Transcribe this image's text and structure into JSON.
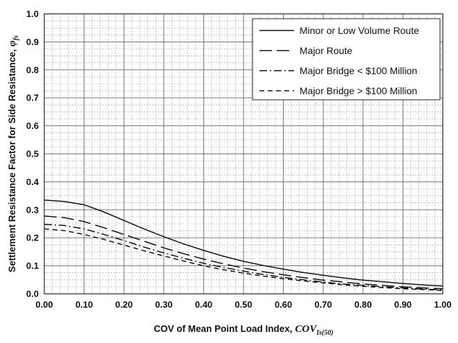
{
  "chart_data": {
    "type": "line",
    "xlabel": "COV of Mean Point Load Index,",
    "xlabel_var": "COV",
    "xlabel_sub": "Is(50)",
    "ylabel": "Settlement Resistance Factor for Side Resistance,",
    "ylabel_var": "φ",
    "ylabel_sub": "fs",
    "xlim": [
      0,
      1
    ],
    "ylim": [
      0,
      1
    ],
    "x_ticks": [
      "0.00",
      "0.10",
      "0.20",
      "0.30",
      "0.40",
      "0.50",
      "0.60",
      "0.70",
      "0.80",
      "0.90",
      "1.00"
    ],
    "y_ticks": [
      "0.0",
      "0.1",
      "0.2",
      "0.3",
      "0.4",
      "0.5",
      "0.6",
      "0.7",
      "0.8",
      "0.9",
      "1.0"
    ],
    "grid": true,
    "legend_position": "top-right",
    "series": [
      {
        "name": "Minor or Low Volume Route",
        "dash": "solid",
        "x": [
          0,
          0.05,
          0.1,
          0.15,
          0.2,
          0.25,
          0.3,
          0.35,
          0.4,
          0.45,
          0.5,
          0.55,
          0.6,
          0.65,
          0.7,
          0.75,
          0.8,
          0.85,
          0.9,
          0.95,
          1.0
        ],
        "y": [
          0.335,
          0.33,
          0.318,
          0.292,
          0.262,
          0.232,
          0.204,
          0.178,
          0.155,
          0.134,
          0.116,
          0.101,
          0.088,
          0.076,
          0.066,
          0.057,
          0.049,
          0.043,
          0.037,
          0.032,
          0.028
        ]
      },
      {
        "name": "Major Route",
        "dash": "long-dash",
        "x": [
          0,
          0.05,
          0.1,
          0.15,
          0.2,
          0.25,
          0.3,
          0.35,
          0.4,
          0.45,
          0.5,
          0.55,
          0.6,
          0.65,
          0.7,
          0.75,
          0.8,
          0.85,
          0.9,
          0.95,
          1.0
        ],
        "y": [
          0.278,
          0.272,
          0.258,
          0.236,
          0.212,
          0.188,
          0.164,
          0.143,
          0.124,
          0.107,
          0.092,
          0.079,
          0.068,
          0.058,
          0.049,
          0.042,
          0.035,
          0.03,
          0.025,
          0.021,
          0.018
        ]
      },
      {
        "name": "Major Bridge < $100 Million",
        "dash": "dash-dot",
        "x": [
          0,
          0.05,
          0.1,
          0.15,
          0.2,
          0.25,
          0.3,
          0.35,
          0.4,
          0.45,
          0.5,
          0.55,
          0.6,
          0.65,
          0.7,
          0.75,
          0.8,
          0.85,
          0.9,
          0.95,
          1.0
        ],
        "y": [
          0.248,
          0.244,
          0.232,
          0.212,
          0.19,
          0.167,
          0.146,
          0.127,
          0.109,
          0.094,
          0.081,
          0.069,
          0.059,
          0.05,
          0.042,
          0.035,
          0.03,
          0.025,
          0.021,
          0.017,
          0.014
        ]
      },
      {
        "name": "Major Bridge > $100 Million",
        "dash": "short-dash",
        "x": [
          0,
          0.05,
          0.1,
          0.15,
          0.2,
          0.25,
          0.3,
          0.35,
          0.4,
          0.45,
          0.5,
          0.55,
          0.6,
          0.65,
          0.7,
          0.75,
          0.8,
          0.85,
          0.9,
          0.95,
          1.0
        ],
        "y": [
          0.232,
          0.226,
          0.212,
          0.194,
          0.174,
          0.154,
          0.135,
          0.117,
          0.1,
          0.086,
          0.074,
          0.063,
          0.054,
          0.046,
          0.039,
          0.032,
          0.027,
          0.022,
          0.018,
          0.015,
          0.012
        ]
      }
    ]
  }
}
